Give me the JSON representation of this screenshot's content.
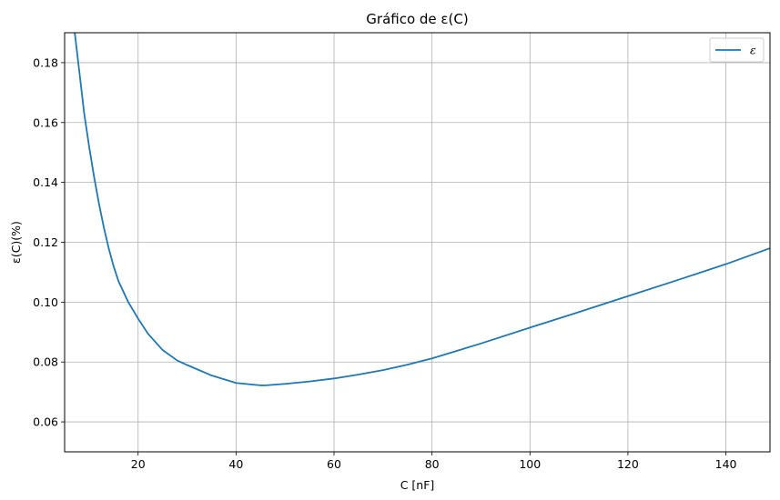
{
  "chart_data": {
    "type": "line",
    "title": "Gráfico de ε(C)",
    "xlabel": "C [nF]",
    "ylabel": "ε(C)(%)",
    "xlim": [
      5,
      149
    ],
    "ylim": [
      0.05,
      0.19
    ],
    "xticks": [
      20,
      40,
      60,
      80,
      100,
      120,
      140
    ],
    "yticks": [
      0.06,
      0.08,
      0.1,
      0.12,
      0.14,
      0.16,
      0.18
    ],
    "ytick_labels": [
      "0.06",
      "0.08",
      "0.10",
      "0.12",
      "0.14",
      "0.16",
      "0.18"
    ],
    "grid": true,
    "legend_position": "top-right",
    "series": [
      {
        "name": "ε",
        "color": "#1f77b4",
        "x": [
          7,
          8,
          9,
          10,
          11,
          12,
          13,
          14,
          15,
          16,
          18,
          20,
          22,
          25,
          28,
          30,
          35,
          40,
          45,
          46,
          50,
          55,
          60,
          65,
          70,
          75,
          80,
          90,
          100,
          110,
          120,
          130,
          140,
          149
        ],
        "y": [
          0.191,
          0.177,
          0.163,
          0.152,
          0.142,
          0.133,
          0.125,
          0.118,
          0.112,
          0.107,
          0.1,
          0.0945,
          0.0895,
          0.084,
          0.0805,
          0.079,
          0.0755,
          0.073,
          0.0722,
          0.0722,
          0.0727,
          0.0735,
          0.0745,
          0.0758,
          0.0773,
          0.0791,
          0.0812,
          0.0862,
          0.0915,
          0.0967,
          0.102,
          0.1073,
          0.1127,
          0.118
        ]
      }
    ]
  }
}
